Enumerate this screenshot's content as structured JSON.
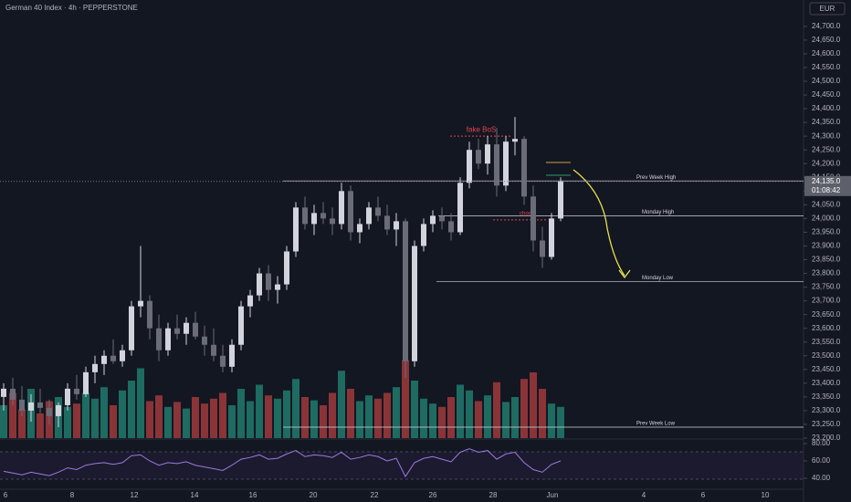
{
  "chart_data": {
    "type": "candlestick",
    "title": "German 40 Index · 4h · PEPPERSTONE",
    "currency": "EUR",
    "ylim": [
      23200,
      24796
    ],
    "yticks": [
      {
        "value": 23200,
        "label": "23,200.0"
      },
      {
        "value": 23250,
        "label": "23,250.0"
      },
      {
        "value": 23300,
        "label": "23,300.0"
      },
      {
        "value": 23350,
        "label": "23,350.0"
      },
      {
        "value": 23400,
        "label": "23,400.0"
      },
      {
        "value": 23450,
        "label": "23,450.0"
      },
      {
        "value": 23500,
        "label": "23,500.0"
      },
      {
        "value": 23550,
        "label": "23,550.0"
      },
      {
        "value": 23600,
        "label": "23,600.0"
      },
      {
        "value": 23650,
        "label": "23,650.0"
      },
      {
        "value": 23700,
        "label": "23,700.0"
      },
      {
        "value": 23750,
        "label": "23,750.0"
      },
      {
        "value": 23800,
        "label": "23,800.0"
      },
      {
        "value": 23850,
        "label": "23,850.0"
      },
      {
        "value": 23900,
        "label": "23,900.0"
      },
      {
        "value": 23950,
        "label": "23,950.0"
      },
      {
        "value": 24000,
        "label": "24,000.0"
      },
      {
        "value": 24050,
        "label": "24,050.0"
      },
      {
        "value": 24100,
        "label": "24,100.0"
      },
      {
        "value": 24150,
        "label": "24,150.0"
      },
      {
        "value": 24200,
        "label": "24,200.0"
      },
      {
        "value": 24250,
        "label": "24,250.0"
      },
      {
        "value": 24300,
        "label": "24,300.0"
      },
      {
        "value": 24350,
        "label": "24,350.0"
      },
      {
        "value": 24400,
        "label": "24,400.0"
      },
      {
        "value": 24450,
        "label": "24,450.0"
      },
      {
        "value": 24500,
        "label": "24,500.0"
      },
      {
        "value": 24550,
        "label": "24,550.0"
      },
      {
        "value": 24600,
        "label": "24,600.0"
      },
      {
        "value": 24650,
        "label": "24,650.0"
      },
      {
        "value": 24700,
        "label": "24,700.0"
      }
    ],
    "x_labels": [
      "6",
      "8",
      "12",
      "14",
      "16",
      "20",
      "22",
      "26",
      "28",
      "Jun",
      "4",
      "6",
      "10"
    ],
    "ohlc": [
      [
        23350,
        23400,
        23300,
        23380
      ],
      [
        23380,
        23420,
        23320,
        23340
      ],
      [
        23340,
        23390,
        23280,
        23300
      ],
      [
        23300,
        23360,
        23260,
        23330
      ],
      [
        23330,
        23380,
        23290,
        23310
      ],
      [
        23310,
        23340,
        23250,
        23280
      ],
      [
        23280,
        23330,
        23240,
        23320
      ],
      [
        23320,
        23400,
        23300,
        23380
      ],
      [
        23380,
        23430,
        23340,
        23360
      ],
      [
        23360,
        23460,
        23350,
        23440
      ],
      [
        23440,
        23500,
        23400,
        23470
      ],
      [
        23470,
        23520,
        23430,
        23500
      ],
      [
        23500,
        23560,
        23470,
        23480
      ],
      [
        23480,
        23540,
        23460,
        23520
      ],
      [
        23520,
        23700,
        23500,
        23680
      ],
      [
        23680,
        23900,
        23640,
        23700
      ],
      [
        23700,
        23720,
        23560,
        23600
      ],
      [
        23600,
        23650,
        23480,
        23520
      ],
      [
        23520,
        23620,
        23500,
        23600
      ],
      [
        23600,
        23650,
        23560,
        23580
      ],
      [
        23580,
        23640,
        23540,
        23620
      ],
      [
        23620,
        23660,
        23560,
        23570
      ],
      [
        23570,
        23610,
        23500,
        23540
      ],
      [
        23540,
        23600,
        23480,
        23500
      ],
      [
        23500,
        23540,
        23440,
        23460
      ],
      [
        23460,
        23560,
        23440,
        23540
      ],
      [
        23540,
        23700,
        23520,
        23680
      ],
      [
        23680,
        23740,
        23640,
        23720
      ],
      [
        23720,
        23820,
        23700,
        23800
      ],
      [
        23800,
        23830,
        23700,
        23740
      ],
      [
        23740,
        23790,
        23690,
        23760
      ],
      [
        23760,
        23900,
        23740,
        23880
      ],
      [
        23880,
        24060,
        23860,
        24040
      ],
      [
        24040,
        24080,
        23960,
        23980
      ],
      [
        23980,
        24050,
        23940,
        24020
      ],
      [
        24020,
        24060,
        23980,
        24000
      ],
      [
        24000,
        24040,
        23940,
        23980
      ],
      [
        23980,
        24130,
        23960,
        24100
      ],
      [
        24100,
        24120,
        23920,
        23950
      ],
      [
        23950,
        24000,
        23910,
        23980
      ],
      [
        23980,
        24060,
        23960,
        24040
      ],
      [
        24040,
        24080,
        23990,
        24010
      ],
      [
        24010,
        24050,
        23940,
        23960
      ],
      [
        23960,
        24020,
        23900,
        23990
      ],
      [
        23990,
        24000,
        23420,
        23480
      ],
      [
        23480,
        23920,
        23460,
        23900
      ],
      [
        23900,
        24000,
        23880,
        23980
      ],
      [
        23980,
        24030,
        23950,
        24010
      ],
      [
        24010,
        24040,
        23960,
        23990
      ],
      [
        23990,
        24020,
        23920,
        23950
      ],
      [
        23950,
        24150,
        23940,
        24130
      ],
      [
        24130,
        24280,
        24110,
        24250
      ],
      [
        24250,
        24290,
        24180,
        24200
      ],
      [
        24200,
        24300,
        24160,
        24270
      ],
      [
        24270,
        24330,
        24080,
        24120
      ],
      [
        24120,
        24300,
        24100,
        24280
      ],
      [
        24280,
        24370,
        24230,
        24290
      ],
      [
        24290,
        24300,
        24050,
        24080
      ],
      [
        24080,
        24120,
        23880,
        23920
      ],
      [
        23920,
        23970,
        23820,
        23860
      ],
      [
        23860,
        24020,
        23850,
        24000
      ],
      [
        24000,
        24150,
        23990,
        24135
      ]
    ],
    "volume": [
      40,
      55,
      35,
      60,
      30,
      45,
      50,
      38,
      42,
      55,
      48,
      62,
      40,
      58,
      70,
      85,
      45,
      52,
      38,
      44,
      36,
      50,
      42,
      48,
      55,
      40,
      60,
      45,
      65,
      52,
      48,
      58,
      72,
      50,
      46,
      40,
      55,
      82,
      60,
      45,
      52,
      48,
      55,
      62,
      95,
      70,
      48,
      42,
      38,
      50,
      65,
      58,
      45,
      52,
      68,
      44,
      50,
      72,
      80,
      60,
      42,
      38
    ],
    "rsi": [
      48,
      46,
      44,
      47,
      45,
      43,
      47,
      52,
      50,
      55,
      57,
      58,
      56,
      58,
      66,
      67,
      60,
      55,
      58,
      57,
      59,
      55,
      53,
      51,
      49,
      55,
      62,
      64,
      67,
      62,
      63,
      68,
      72,
      65,
      67,
      66,
      64,
      70,
      62,
      64,
      67,
      65,
      60,
      63,
      42,
      58,
      63,
      65,
      62,
      59,
      70,
      74,
      70,
      72,
      62,
      68,
      70,
      58,
      50,
      47,
      56,
      60
    ],
    "rsi_ylim": [
      28.4,
      84.2
    ],
    "rsi_yticks": [
      {
        "value": 80,
        "label": "80.00"
      },
      {
        "value": 60,
        "label": "60.00"
      },
      {
        "value": 40,
        "label": "40.00"
      }
    ],
    "levels": [
      {
        "label": "Prev Week High",
        "value": 24137
      },
      {
        "label": "Monday High",
        "value": 24010
      },
      {
        "label": "Monday Low",
        "value": 23770
      },
      {
        "label": "Prev Week Low",
        "value": 23240
      }
    ],
    "annotations": [
      {
        "text": "fake BoS",
        "value": 24300
      },
      {
        "text": "choch",
        "value": 23995
      }
    ],
    "last_price": {
      "value": 24135,
      "label": "24,135.0"
    },
    "countdown": "01:08:42"
  }
}
